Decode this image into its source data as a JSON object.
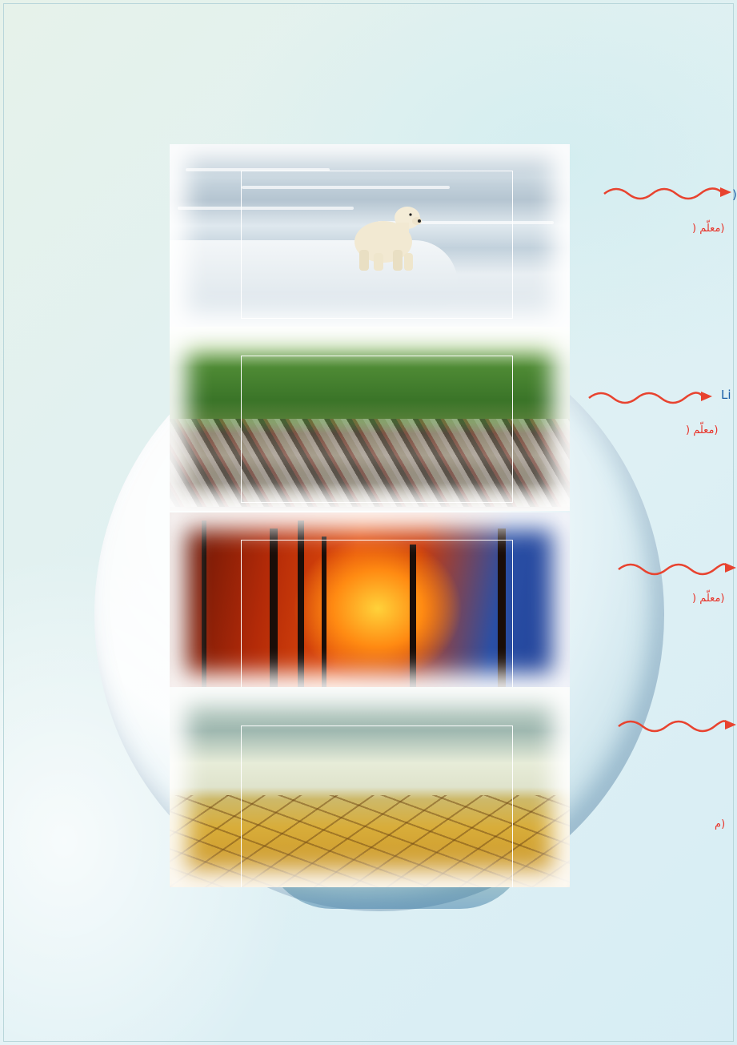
{
  "labels": {
    "item1_en": ")",
    "item1_ar": ") معلّم)",
    "item2_en": "Li",
    "item2_ar": ") معلّم)",
    "item3_ar": ") معلّم)",
    "item4_ar": "م)"
  },
  "colors": {
    "arrow": "#e8432f",
    "label_blue": "#1b5fa8",
    "label_red": "#e8352b"
  },
  "icons": {
    "arrow": "wavy-arrow-right-icon"
  }
}
